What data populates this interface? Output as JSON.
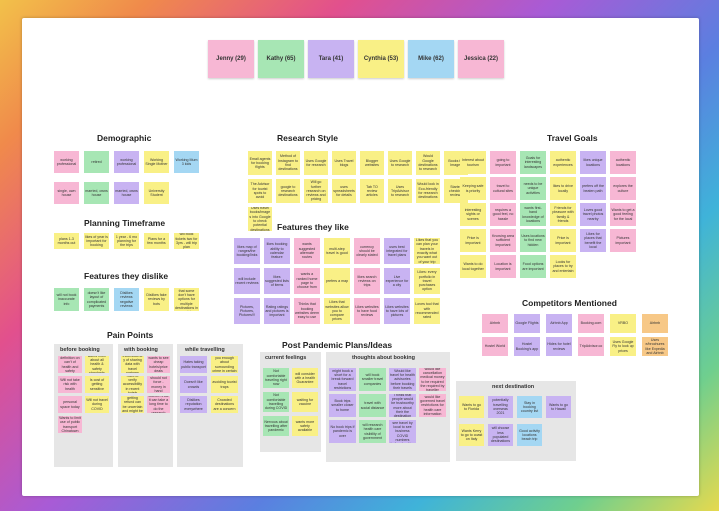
{
  "participants": [
    "Jenny (29)",
    "Kathy (65)",
    "Tara (41)",
    "Cynthia (53)",
    "Mike (62)",
    "Jessica (22)"
  ],
  "sections": {
    "demographic": "Demographic",
    "research": "Research Style",
    "travel": "Travel Goals",
    "planning": "Planning Timeframe",
    "like": "Features they like",
    "dislike": "Features they dislike",
    "competitors": "Competitors Mentioned",
    "pain": "Pain Points",
    "pandemic": "Post Pandemic Plans/Ideas"
  },
  "pain_groups": {
    "before": "before booking",
    "with": "with booking",
    "while": "while travelling"
  },
  "pandemic_groups": {
    "feelings": "current feelings",
    "thoughts": "thoughts about booking",
    "next": "next destination"
  },
  "notes": {
    "demo": [
      "working professional",
      "retired",
      "working professional",
      "Working Single Mother",
      "Working Mum 3 kids",
      "single, own house",
      "married, owns house",
      "married, owns house",
      "University Student"
    ],
    "research": [
      "Email agents for booking flights",
      "Method of Instagram to find destinations",
      "Uses Google for research",
      "Uses Travel blogs",
      "Blogger websites",
      "Uses Google to research",
      "Would Google destinations to research",
      "Books for Images",
      "The Advisor for tourist spots to avoid",
      "google to research destinations",
      "Will go further research on reviews and pricing",
      "uses spreadsheets for details",
      "Tab TO review articles",
      "Uses TripAdvisor to research",
      "Would look in Eco-friendly for research destinations",
      "Started checking reviews",
      "Uses travel books/images into Google to check potential destinations"
    ],
    "travel": [
      "Interest about tourism",
      "going to important",
      "Goals for interesting landscapes",
      "authentic experiences",
      "likes unique locations",
      "authentic locations",
      "Keeping safe is priority",
      "travel to cultural sites",
      "needs to be unique activities",
      "likes to drive locally",
      "prefers off the beaten path",
      "explores the culture",
      "interesting sights or scenes",
      "requires a good feel, no hassle",
      "wants first-hand knowledge of locations",
      "Friends for pleasure with family & friends",
      "Loves good travel photos nearby",
      "Wants to get a good feeling for the local",
      "Price is important",
      "Knowing area sufficient important",
      "Uses locations to find new hidden",
      "Price is important",
      "Likes for places that benefit the local",
      "Pictures important",
      "Wants to do local together",
      "Location is important",
      "Food options are important",
      "Looks for places to try and entertain",
      "",
      ""
    ],
    "planning": [
      "plans 1-3 months out",
      "likes of year is important for booking",
      "1 year - 6 mo planning for the trips",
      "Plans for a few months",
      "will book tickets two for 3yrs - will trip plan"
    ],
    "like": [
      "likes map of ranges/the booking/links",
      "likes booking ability to calendar feature",
      "wants suggested alternate routes",
      "multi-step travel is good",
      "currency should be clearly stated",
      "uses best integrated for travel plans",
      "Likes that you can plan your travels in exactly what you want out of your trip",
      "will include recent reviews",
      "likes suggested lists of items",
      "wants a ranked home page to choose from",
      "prefers a map",
      "likes search reviews on trips",
      "Live experience for a city",
      "Likes: every portfolio in travel purchases option",
      "Pictures, Pictures, Pictures!!!",
      "Rating ratings and pictures is important",
      "Thinks that booking websites deem easy to use",
      "Likes that websites allow you to compare prices",
      "Likes websites to have food reviews",
      "Likes websites to have lots of pictures",
      "Loves tool that with recommended rated"
    ],
    "dislike": [
      "will not book inaccurate info",
      "doesn't like layout of complicated payments",
      "Dislikes reviews negative reviews",
      "Dislikes fake reviews by bots",
      "Doesn't like that some don't have options for multiple destinations in one trip"
    ],
    "competitors": [
      "Airbnb",
      "Google Flights",
      "Airbnb App",
      "Booking.com",
      "VRBO",
      "Airbnb",
      "Hostel World",
      "Hostel Booking's app",
      "Hides for hotel reviews",
      "TripAdvisor.co",
      "Uses Google Fly to look up prices",
      "Uses e/brochures like Expedia and Airbnb"
    ],
    "pain_before": [
      "Hates definition on can't of health and safety standards",
      "wants more about all health & safety standards",
      "Will not take risk with health",
      "Is cost of getting sensitive",
      "personal space today",
      "Will not travel during COVID",
      "Wants to limit use of public transport Chinatown"
    ],
    "pain_with": [
      "Inconsistency of sharing data with travel partners",
      "wants to see cheap hotels/price deals",
      "Hard to verify accessibility in recent hotels",
      "should not force - money in hand",
      "Thinks getting refund can be uncertain and might be delayed",
      "Doesn't trust it can take a long time to do the research"
    ],
    "pain_while": [
      "Hates taking public transport",
      "Thinks that they don't tell you enough about surrounding crime in certain specific booking",
      "Doesn't like crowds",
      "avoiding tourist traps",
      "Dislikes reputation everywhere",
      "Crowded destinations are a concern"
    ],
    "feelings": [
      "Not comfortable traveling right now",
      "will consider with a health Guarantee",
      "Not comfortable travelling during COVID",
      "waiting for vaccine",
      "Nervous about travelling after pandemic",
      "wants more safety available"
    ],
    "thoughts": [
      "might book a short for a break forward travel restrictions",
      "will book smaller travel companies",
      "Would like travel for health advisories before booking their travels",
      "would like cancellation medical money to be required the required by traveller",
      "Book trips smaller closer to home",
      "travel with social distance",
      "Thinks that people would be trustworthy more about their the destination",
      "would like governed travel restrictions for health care information",
      "No book trips if pandemic is over",
      "will research health care visibility of government",
      "would like to see travel by local to see business COVID numbers before booking"
    ],
    "next": [
      "Wants to go to Florida",
      "potentially travelling overseas 2021",
      "Stay in booking country list",
      "Wants to go to Hawaii",
      "Wants Kerry to go to coast on Italy",
      "will choose less populated destinations",
      "Good activity locations beach trip"
    ]
  }
}
